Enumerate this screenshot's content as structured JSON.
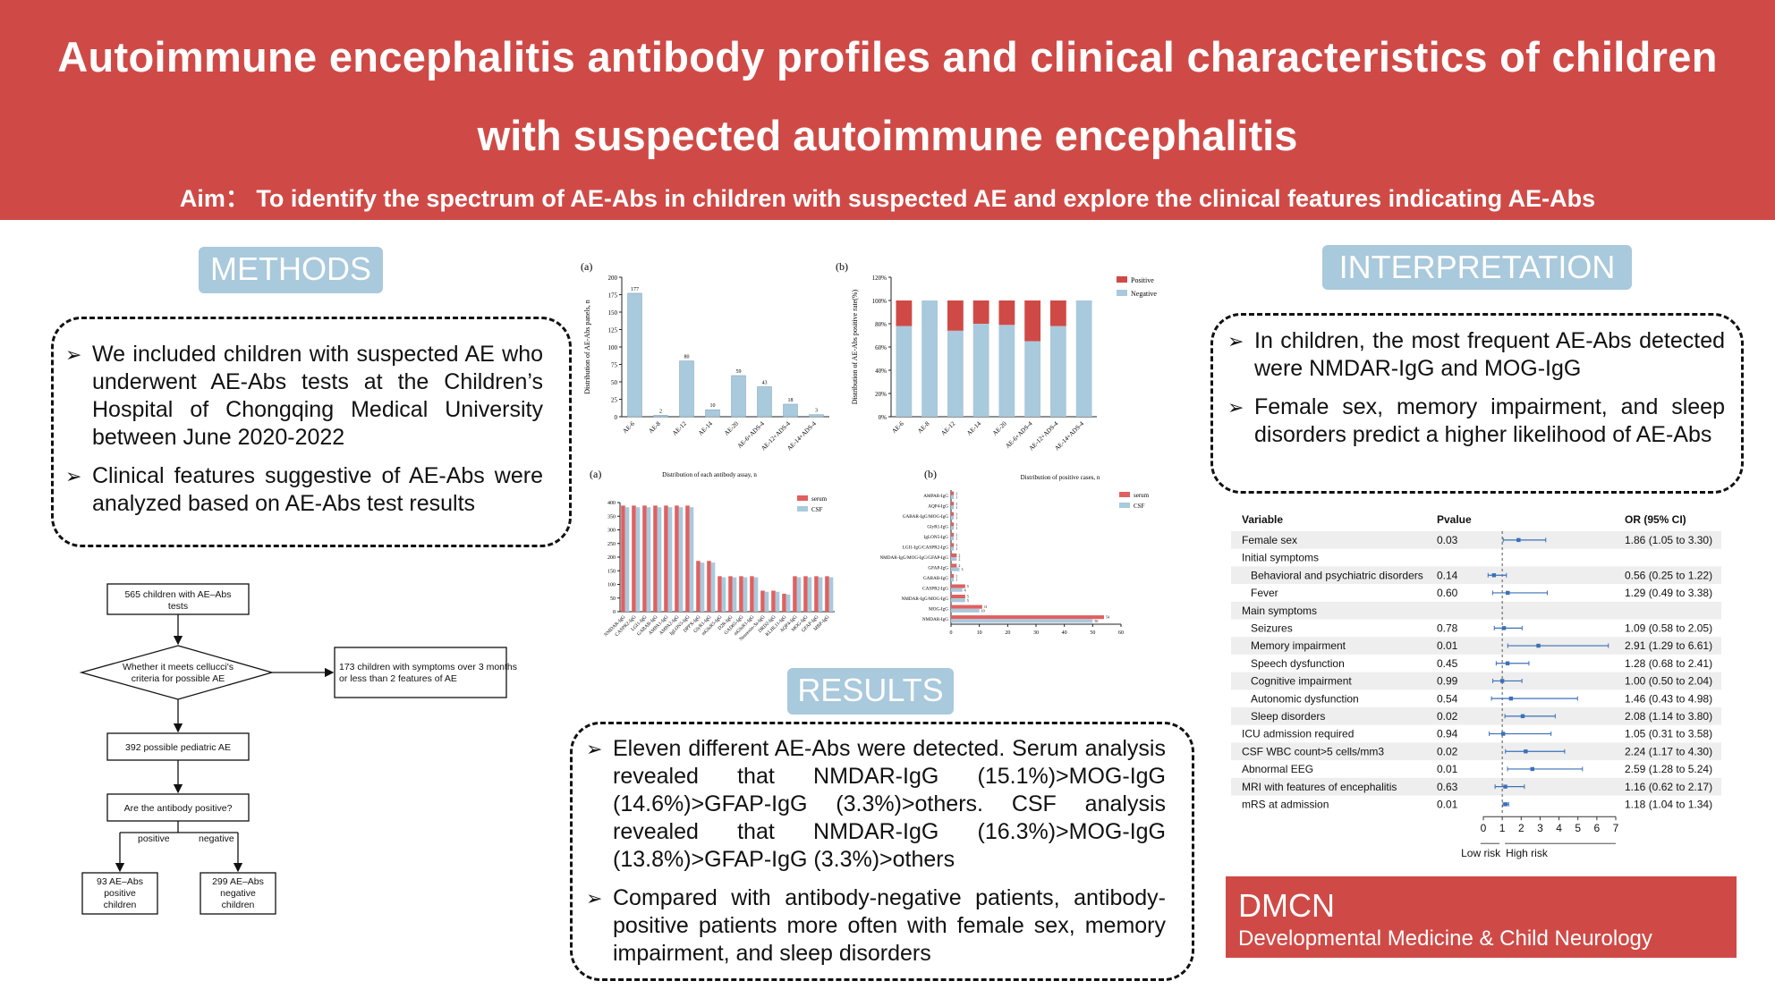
{
  "header": {
    "title_line1": "Autoimmune encephalitis antibody profiles and clinical characteristics of children",
    "title_line2": "with suspected autoimmune encephalitis",
    "aim": "Aim： To identify the spectrum of AE-Abs in children with suspected AE and explore the clinical features indicating AE-Abs"
  },
  "methods": {
    "label": "METHODS",
    "bullets": [
      "We included children with suspected AE who underwent AE-Abs tests at the Children’s Hospital of Chongqing Medical University between June 2020-2022",
      "Clinical features suggestive of AE-Abs were analyzed based on AE-Abs test results"
    ]
  },
  "flowchart": {
    "box1": [
      "565 children with AE–Abs",
      "tests"
    ],
    "diamond": [
      "Whether it meets cellucci's",
      "criteria for possible AE"
    ],
    "exclude": [
      "173 children with symptoms over 3 months",
      "or less than 2 features of AE"
    ],
    "box2": "392 possible pediatric AE",
    "box3": "Are the antibody positive?",
    "branch_pos": "positive",
    "branch_neg": "negative",
    "box_pos": [
      "93 AE–Abs",
      "positive",
      "children"
    ],
    "box_neg": [
      "299 AE–Abs",
      "negative",
      "children"
    ]
  },
  "results": {
    "label": "RESULTS",
    "bullets": [
      "Eleven different AE-Abs were detected. Serum analysis revealed that NMDAR-IgG (15.1%)>MOG-IgG (14.6%)>GFAP-IgG (3.3%)>others. CSF analysis revealed that NMDAR-IgG (16.3%)>MOG-IgG (13.8%)>GFAP-IgG (3.3%)>others",
      "Compared with antibody-negative patients, antibody-positive patients more often with female sex, memory impairment, and sleep disorders"
    ]
  },
  "interpretation": {
    "label": "INTERPRETATION",
    "bullets": [
      "In children, the most frequent AE-Abs detected were NMDAR-IgG and MOG-IgG",
      "Female sex, memory impairment, and sleep disorders predict a higher likelihood of AE-Abs"
    ]
  },
  "chart_data": [
    {
      "type": "bar",
      "panel": "(a)",
      "ylabel": "Distribution of AE-Abs panels, n",
      "categories": [
        "AE-6",
        "AE-8",
        "AE-12",
        "AE-14",
        "AE-20",
        "AE-6+ADS-4",
        "AE-12+ADS-4",
        "AE-14+ADS-4"
      ],
      "values": [
        177,
        2,
        80,
        10,
        59,
        43,
        18,
        3
      ],
      "ylim": [
        0,
        200
      ],
      "yticks": [
        0,
        25,
        50,
        75,
        100,
        125,
        150,
        175,
        200
      ],
      "color": "#a9c9dc"
    },
    {
      "type": "bar",
      "stacked": true,
      "panel": "(b)",
      "ylabel": "Distribution of AE-Abs positive rate(%)",
      "categories": [
        "AE-6",
        "AE-8",
        "AE-12",
        "AE-14",
        "AE-20",
        "AE-6+ADS-4",
        "AE-12+ADS-4",
        "AE-14+ADS-4"
      ],
      "series": [
        {
          "name": "Positive",
          "values": [
            22,
            0,
            26,
            20,
            21,
            35,
            22,
            0
          ],
          "color": "#cf4a46"
        },
        {
          "name": "Negative",
          "values": [
            78,
            100,
            74,
            80,
            79,
            65,
            78,
            100
          ],
          "color": "#a9c9dc"
        }
      ],
      "ylim": [
        0,
        120
      ],
      "yticks": [
        "0%",
        "20%",
        "40%",
        "60%",
        "80%",
        "100%",
        "120%"
      ],
      "legend": "top-right"
    },
    {
      "type": "bar",
      "panel": "(a)",
      "title": "Distribution of each antibody assay, n",
      "categories": [
        "NMDAR-IgG",
        "CASPR2-IgG",
        "LGI1-IgG",
        "GABAB-IgG",
        "AMPA1-IgG",
        "AMPA2-IgG",
        "IgLON5-IgG",
        "DPPX-IgG",
        "GlyR1-IgG",
        "mGluR5-IgG",
        "D2R-IgG",
        "GAD65-IgG",
        "mGluR1-IgG",
        "Neurexin-3a-IgG",
        "DRD2-IgG",
        "KLHL11-IgG",
        "AQP4-IgG",
        "MOG-IgG",
        "GFAP-IgG",
        "MBP-IgG"
      ],
      "series": [
        {
          "name": "serum",
          "values": [
            389,
            389,
            389,
            389,
            389,
            389,
            389,
            186,
            186,
            130,
            130,
            130,
            130,
            77,
            77,
            66,
            130,
            130,
            130,
            130
          ],
          "color": "#e06060"
        },
        {
          "name": "CSF",
          "values": [
            383,
            383,
            383,
            383,
            383,
            383,
            383,
            180,
            180,
            126,
            126,
            126,
            126,
            73,
            73,
            63,
            126,
            126,
            126,
            126
          ],
          "color": "#a9c9dc"
        }
      ],
      "ylim": [
        0,
        400
      ],
      "yticks": [
        0,
        50,
        100,
        150,
        200,
        250,
        300,
        350,
        400
      ],
      "legend": "top-right"
    },
    {
      "type": "bar",
      "horizontal": true,
      "panel": "(b)",
      "title": "Distribution of positive cases, n",
      "categories": [
        "AMPAR-IgG",
        "AQP4-IgG",
        "GABAR-IgG/MOG-IgG",
        "GlyR1-IgG",
        "IgLON5-IgG",
        "LGI1-IgG/CASPR2-IgG",
        "NMDAR-IgG/MOG-IgG/GFAP-IgG",
        "GFAP-IgG",
        "GABAB-IgG",
        "CASPR2-IgG",
        "NMDAR-IgG/MOG-IgG",
        "MOG-IgG",
        "NMDAR-IgG"
      ],
      "series": [
        {
          "name": "serum",
          "values": [
            1,
            1,
            1,
            1,
            1,
            1,
            2,
            2,
            1,
            5,
            5,
            11,
            54
          ],
          "color": "#e06060"
        },
        {
          "name": "CSF",
          "values": [
            1,
            1,
            1,
            1,
            1,
            1,
            2,
            3,
            1,
            4,
            5,
            10,
            50
          ],
          "color": "#a9c9dc"
        }
      ],
      "xlim": [
        0,
        60
      ],
      "xticks": [
        0,
        10,
        20,
        30,
        40,
        50,
        60
      ],
      "legend": "top-right"
    },
    {
      "type": "scatter",
      "subtype": "forest",
      "columns": [
        "Variable",
        "Pvalue",
        "OR (95% CI)"
      ],
      "rows": [
        {
          "variable": "Female sex",
          "p": "0.03",
          "ci_text": "1.86 (1.05 to 3.30)",
          "or": 1.86,
          "lo": 1.05,
          "hi": 3.3,
          "indent": 0,
          "shaded": true
        },
        {
          "variable": "Initial symptoms",
          "p": "",
          "ci_text": "",
          "indent": 0,
          "shaded": false
        },
        {
          "variable": "Behavioral and psychiatric disorders",
          "p": "0.14",
          "ci_text": "0.56 (0.25 to 1.22)",
          "or": 0.56,
          "lo": 0.25,
          "hi": 1.22,
          "indent": 1,
          "shaded": true
        },
        {
          "variable": "Fever",
          "p": "0.60",
          "ci_text": "1.29 (0.49 to 3.38)",
          "or": 1.29,
          "lo": 0.49,
          "hi": 3.38,
          "indent": 1,
          "shaded": false
        },
        {
          "variable": "Main symptoms",
          "p": "",
          "ci_text": "",
          "indent": 0,
          "shaded": true
        },
        {
          "variable": "Seizures",
          "p": "0.78",
          "ci_text": "1.09 (0.58 to 2.05)",
          "or": 1.09,
          "lo": 0.58,
          "hi": 2.05,
          "indent": 1,
          "shaded": false
        },
        {
          "variable": "Memory impairment",
          "p": "0.01",
          "ci_text": "2.91 (1.29 to 6.61)",
          "or": 2.91,
          "lo": 1.29,
          "hi": 6.61,
          "indent": 1,
          "shaded": true
        },
        {
          "variable": "Speech dysfunction",
          "p": "0.45",
          "ci_text": "1.28 (0.68 to 2.41)",
          "or": 1.28,
          "lo": 0.68,
          "hi": 2.41,
          "indent": 1,
          "shaded": false
        },
        {
          "variable": "Cognitive impairment",
          "p": "0.99",
          "ci_text": "1.00 (0.50 to 2.04)",
          "or": 1.0,
          "lo": 0.5,
          "hi": 2.04,
          "indent": 1,
          "shaded": true
        },
        {
          "variable": "Autonomic dysfunction",
          "p": "0.54",
          "ci_text": "1.46 (0.43 to 4.98)",
          "or": 1.46,
          "lo": 0.43,
          "hi": 4.98,
          "indent": 1,
          "shaded": false
        },
        {
          "variable": "Sleep disorders",
          "p": "0.02",
          "ci_text": "2.08 (1.14 to 3.80)",
          "or": 2.08,
          "lo": 1.14,
          "hi": 3.8,
          "indent": 1,
          "shaded": true
        },
        {
          "variable": "ICU admission required",
          "p": "0.94",
          "ci_text": "1.05 (0.31 to 3.58)",
          "or": 1.05,
          "lo": 0.31,
          "hi": 3.58,
          "indent": 0,
          "shaded": false
        },
        {
          "variable": "CSF WBC count>5 cells/mm3",
          "p": "0.02",
          "ci_text": "2.24 (1.17 to 4.30)",
          "or": 2.24,
          "lo": 1.17,
          "hi": 4.3,
          "indent": 0,
          "shaded": true
        },
        {
          "variable": "Abnormal EEG",
          "p": "0.01",
          "ci_text": "2.59 (1.28 to 5.24)",
          "or": 2.59,
          "lo": 1.28,
          "hi": 5.24,
          "indent": 0,
          "shaded": false
        },
        {
          "variable": "MRI with features of encephalitis",
          "p": "0.63",
          "ci_text": "1.16 (0.62 to 2.17)",
          "or": 1.16,
          "lo": 0.62,
          "hi": 2.17,
          "indent": 0,
          "shaded": true
        },
        {
          "variable": "mRS at admission",
          "p": "0.01",
          "ci_text": "1.18 (1.04 to 1.34)",
          "or": 1.18,
          "lo": 1.04,
          "hi": 1.34,
          "indent": 0,
          "shaded": false
        }
      ],
      "xlim": [
        0,
        7
      ],
      "xticks": [
        0,
        1,
        2,
        3,
        4,
        5,
        6,
        7
      ],
      "reference_line": 1,
      "xlabel_left": "Low risk",
      "xlabel_right": "High risk",
      "color": "#3a70b8"
    }
  ],
  "footer": {
    "abbr": "DMCN",
    "full": "Developmental Medicine & Child Neurology"
  }
}
